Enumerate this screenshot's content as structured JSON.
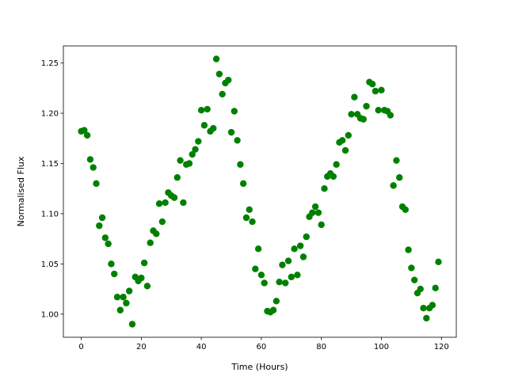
{
  "chart_data": {
    "type": "scatter",
    "x_label": "Time (Hours)",
    "y_label": "Normalised Flux",
    "color": "#008000",
    "x": [
      0,
      1,
      2,
      3,
      4,
      5,
      6,
      7,
      8,
      9,
      10,
      11,
      12,
      13,
      14,
      15,
      16,
      17,
      18,
      19,
      20,
      21,
      22,
      23,
      24,
      25,
      26,
      27,
      28,
      29,
      30,
      31,
      32,
      33,
      34,
      35,
      36,
      37,
      38,
      39,
      40,
      41,
      42,
      43,
      44,
      45,
      46,
      47,
      48,
      49,
      50,
      51,
      52,
      53,
      54,
      55,
      56,
      57,
      58,
      59,
      60,
      61,
      62,
      63,
      64,
      65,
      66,
      67,
      68,
      69,
      70,
      71,
      72,
      73,
      74,
      75,
      76,
      77,
      78,
      79,
      80,
      81,
      82,
      83,
      84,
      85,
      86,
      87,
      88,
      89,
      90,
      91,
      92,
      93,
      94,
      95,
      96,
      97,
      98,
      99,
      100,
      101,
      102,
      103,
      104,
      105,
      106,
      107,
      108,
      109,
      110,
      111,
      112,
      113,
      114,
      115,
      116,
      117,
      118,
      119
    ],
    "values": [
      1.182,
      1.183,
      1.178,
      1.154,
      1.146,
      1.13,
      1.088,
      1.096,
      1.076,
      1.07,
      1.05,
      1.04,
      1.017,
      1.004,
      1.017,
      1.011,
      1.023,
      0.99,
      1.037,
      1.033,
      1.036,
      1.051,
      1.028,
      1.071,
      1.083,
      1.08,
      1.11,
      1.092,
      1.111,
      1.121,
      1.118,
      1.116,
      1.136,
      1.153,
      1.111,
      1.149,
      1.15,
      1.159,
      1.164,
      1.172,
      1.203,
      1.188,
      1.204,
      1.182,
      1.185,
      1.254,
      1.239,
      1.219,
      1.23,
      1.233,
      1.181,
      1.202,
      1.173,
      1.149,
      1.13,
      1.096,
      1.104,
      1.092,
      1.045,
      1.065,
      1.039,
      1.031,
      1.003,
      1.002,
      1.004,
      1.013,
      1.032,
      1.049,
      1.031,
      1.053,
      1.037,
      1.065,
      1.039,
      1.068,
      1.057,
      1.077,
      1.097,
      1.101,
      1.107,
      1.101,
      1.089,
      1.125,
      1.137,
      1.14,
      1.137,
      1.149,
      1.171,
      1.173,
      1.163,
      1.178,
      1.199,
      1.216,
      1.199,
      1.195,
      1.194,
      1.207,
      1.231,
      1.229,
      1.222,
      1.203,
      1.223,
      1.203,
      1.202,
      1.198,
      1.128,
      1.153,
      1.136,
      1.107,
      1.104,
      1.064,
      1.046,
      1.034,
      1.021,
      1.025,
      1.006,
      0.996,
      1.006,
      1.009,
      1.026,
      1.052
    ],
    "xlim": [
      -5.95,
      124.95
    ],
    "xticks": [
      0,
      20,
      40,
      60,
      80,
      100,
      120
    ],
    "ylim": [
      0.977,
      1.267
    ],
    "yticks": [
      {
        "value": 1.0,
        "label": "1.00"
      },
      1.05,
      {
        "value": 1.1,
        "label": "1.10"
      },
      1.15,
      {
        "value": 1.2,
        "label": "1.20"
      },
      1.25
    ]
  }
}
